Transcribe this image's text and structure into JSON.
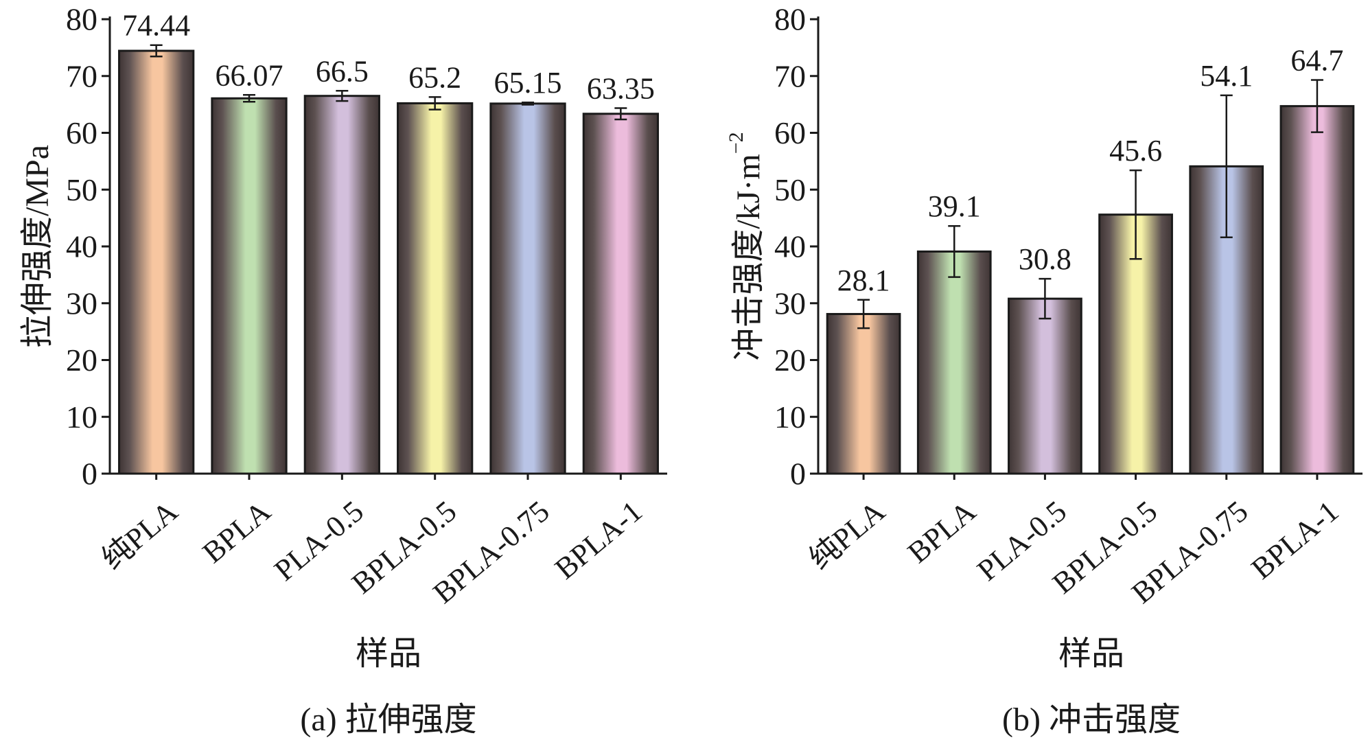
{
  "chart_data": [
    {
      "type": "bar",
      "caption": "(a) 拉伸强度",
      "xlabel": "样品",
      "ylabel": "拉伸强度/MPa",
      "ylim": [
        0,
        80
      ],
      "yticks": [
        0,
        10,
        20,
        30,
        40,
        50,
        60,
        70,
        80
      ],
      "categories": [
        "纯PLA",
        "BPLA",
        "PLA-0.5",
        "BPLA-0.5",
        "BPLA-0.75",
        "BPLA-1"
      ],
      "values": [
        74.44,
        66.07,
        66.5,
        65.2,
        65.15,
        63.35
      ],
      "value_labels": [
        "74.44",
        "66.07",
        "66.5",
        "65.2",
        "65.15",
        "63.35"
      ],
      "errors": [
        1.0,
        0.6,
        0.9,
        1.1,
        0.2,
        1.0
      ],
      "colors": [
        "#f7c6a0",
        "#bfe0b0",
        "#d3bfdc",
        "#f6f2a8",
        "#b9c4e6",
        "#ecbcdc"
      ],
      "grid": false
    },
    {
      "type": "bar",
      "caption": "(b) 冲击强度",
      "xlabel": "样品",
      "ylabel": "冲击强度/kJ·m",
      "ylabel_sup": "−2",
      "ylim": [
        0,
        80
      ],
      "yticks": [
        0,
        10,
        20,
        30,
        40,
        50,
        60,
        70,
        80
      ],
      "categories": [
        "纯PLA",
        "BPLA",
        "PLA-0.5",
        "BPLA-0.5",
        "BPLA-0.75",
        "BPLA-1"
      ],
      "values": [
        28.1,
        39.1,
        30.8,
        45.6,
        54.1,
        64.7
      ],
      "value_labels": [
        "28.1",
        "39.1",
        "30.8",
        "45.6",
        "54.1",
        "64.7"
      ],
      "errors": [
        2.5,
        4.5,
        3.5,
        7.8,
        12.5,
        4.6
      ],
      "colors": [
        "#f7c6a0",
        "#bfe0b0",
        "#d3bfdc",
        "#f6f2a8",
        "#b9c4e6",
        "#ecbcdc"
      ],
      "grid": false
    }
  ]
}
